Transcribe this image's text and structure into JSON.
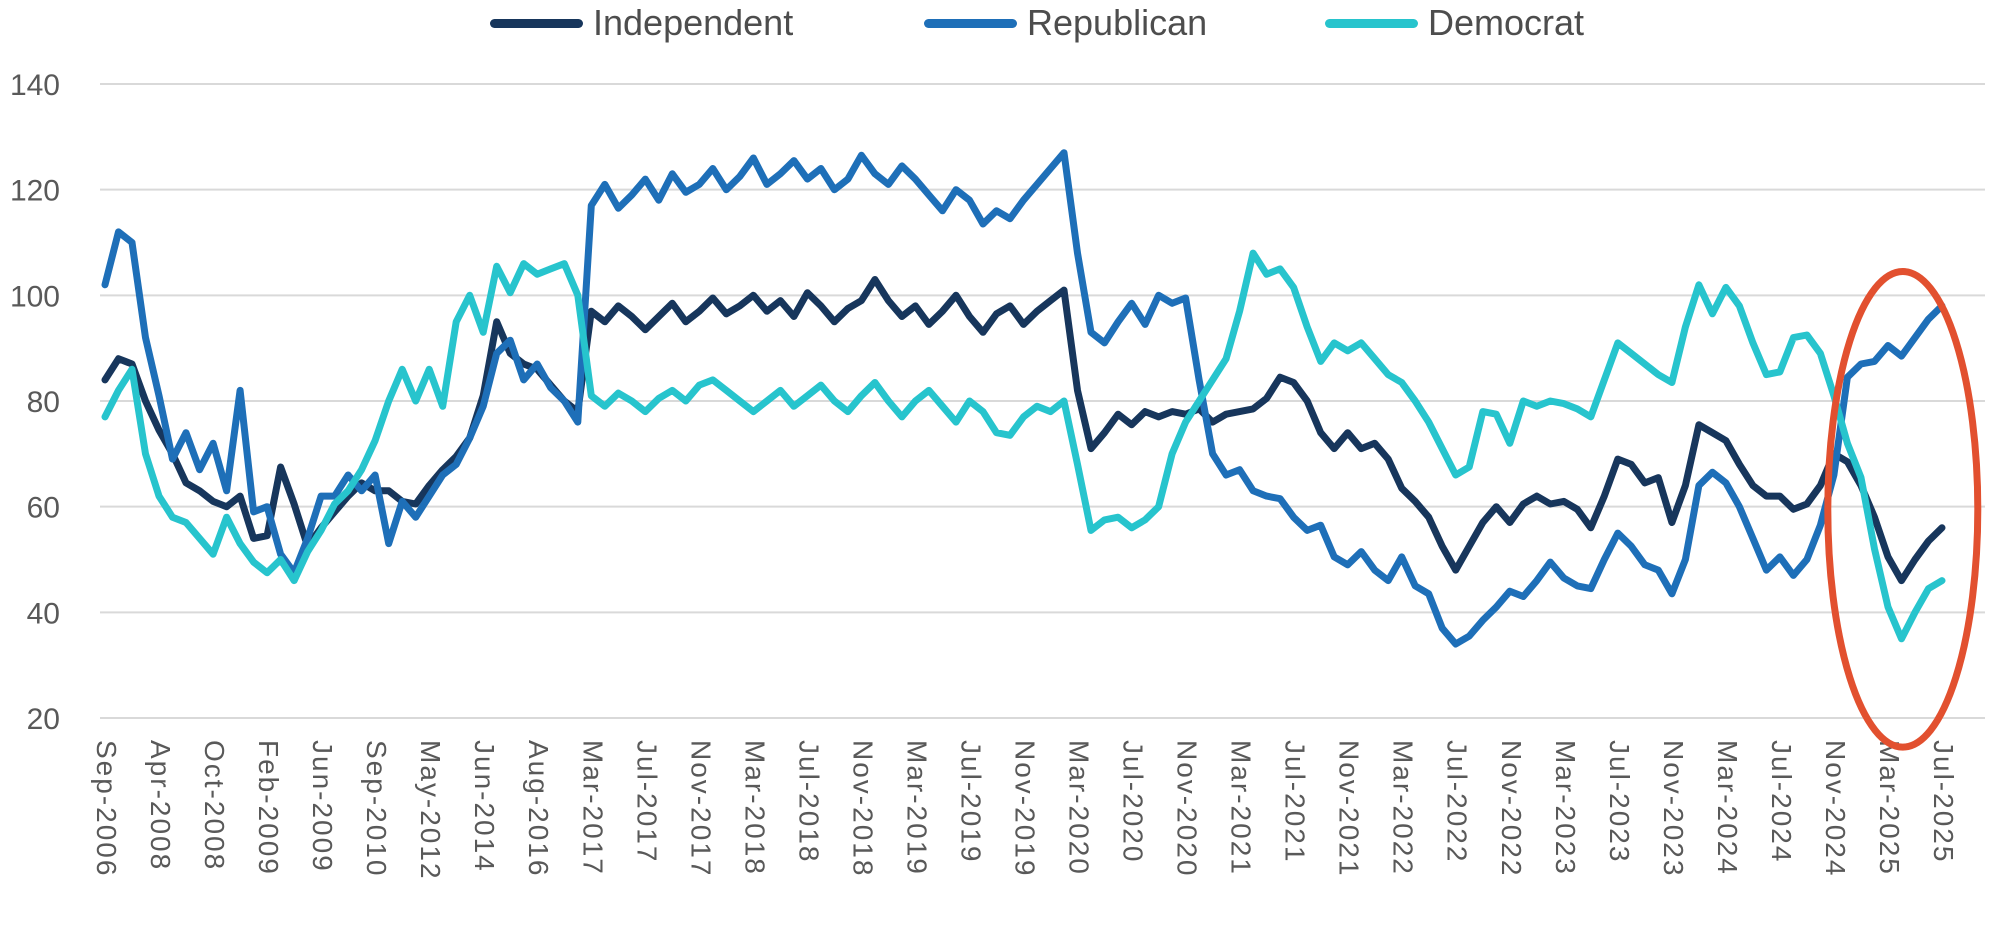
{
  "legend": {
    "items": [
      {
        "label": "Independent"
      },
      {
        "label": "Republican"
      },
      {
        "label": "Democrat"
      }
    ]
  },
  "chart_data": {
    "type": "line",
    "n_points": 137,
    "x_label_interval": 4,
    "x_labels": [
      "Sep-2006",
      "Apr-2008",
      "Oct-2008",
      "Feb-2009",
      "Jun-2009",
      "Sep-2010",
      "May-2012",
      "Jun-2014",
      "Aug-2016",
      "Mar-2017",
      "Jul-2017",
      "Nov-2017",
      "Mar-2018",
      "Jul-2018",
      "Nov-2018",
      "Mar-2019",
      "Jul-2019",
      "Nov-2019",
      "Mar-2020",
      "Jul-2020",
      "Nov-2020",
      "Mar-2021",
      "Jul-2021",
      "Nov-2021",
      "Mar-2022",
      "Jul-2022",
      "Nov-2022",
      "Mar-2023",
      "Jul-2023",
      "Nov-2023",
      "Mar-2024",
      "Jul-2024",
      "Nov-2024",
      "Mar-2025",
      "Jul-2025"
    ],
    "y_axis": {
      "min": 20,
      "max": 140,
      "tick_step": 20,
      "ticks": [
        "140",
        "120",
        "100",
        "80",
        "60",
        "40",
        "20"
      ],
      "grid": true
    },
    "legend_position": "top",
    "series": [
      {
        "name": "Independent",
        "color": "#17365c",
        "values": [
          84,
          88,
          87,
          80,
          74.5,
          70,
          64.5,
          63,
          61,
          60,
          62,
          54,
          54.5,
          67.5,
          60.5,
          52.5,
          56,
          59,
          62,
          64.5,
          63,
          63,
          61,
          60.5,
          64,
          67,
          69.5,
          73,
          81,
          95,
          89,
          87,
          86,
          83,
          80,
          78,
          97,
          95,
          98,
          96,
          93.5,
          96,
          98.5,
          95,
          97,
          99.5,
          96.5,
          98,
          100,
          97,
          99,
          96,
          100.5,
          98,
          95,
          97.5,
          99,
          103,
          99,
          96,
          98,
          94.5,
          97,
          100,
          96,
          93,
          96.5,
          98,
          94.5,
          97,
          99,
          101,
          82,
          71,
          74,
          77.5,
          75.5,
          78,
          77,
          78,
          77.5,
          78.5,
          76,
          77.5,
          78,
          78.5,
          80.5,
          84.5,
          83.5,
          80,
          74,
          71,
          74,
          71,
          72,
          69,
          63.5,
          61,
          58,
          52.5,
          48,
          52.5,
          57,
          60,
          57,
          60.5,
          62,
          60.5,
          61,
          59.5,
          56,
          62,
          69,
          68,
          64.5,
          65.5,
          57,
          64,
          75.5,
          74,
          72.5,
          68,
          64,
          62,
          62,
          59.5,
          60.5,
          64,
          70,
          68.5,
          64,
          58,
          50.5,
          46,
          50,
          53.5,
          56
        ]
      },
      {
        "name": "Republican",
        "color": "#1e6fb8",
        "values": [
          102,
          112,
          110,
          92,
          81,
          69,
          74,
          67,
          72,
          63,
          82,
          59,
          60,
          51,
          47.5,
          54,
          62,
          62,
          66,
          63,
          66,
          53,
          61,
          58,
          62,
          66,
          68,
          73,
          79,
          89,
          91.5,
          84,
          87,
          82.5,
          80,
          76,
          117,
          121,
          116.5,
          119,
          122,
          118,
          123,
          119.5,
          121,
          124,
          120,
          122.5,
          126,
          121,
          123,
          125.5,
          122,
          124,
          120,
          122,
          126.5,
          123,
          121,
          124.5,
          122,
          119,
          116,
          120,
          118,
          113.5,
          116,
          114.5,
          118,
          121,
          124,
          127,
          108,
          93,
          91,
          95,
          98.5,
          94.5,
          100,
          98.5,
          99.5,
          84,
          70,
          66,
          67,
          63,
          62,
          61.5,
          58,
          55.5,
          56.5,
          50.5,
          49,
          51.5,
          48,
          46,
          50.5,
          45,
          43.5,
          37,
          34,
          35.5,
          38.5,
          41,
          44,
          43,
          46,
          49.5,
          46.5,
          45,
          44.5,
          50,
          55,
          52.5,
          49,
          48,
          43.5,
          50,
          64,
          66.5,
          64.5,
          60,
          54,
          48,
          50.5,
          47,
          50,
          56.5,
          66,
          84.5,
          87,
          87.5,
          90.5,
          88.5,
          92,
          95.5,
          98
        ]
      },
      {
        "name": "Democrat",
        "color": "#27c4cd",
        "values": [
          77,
          82,
          86,
          70,
          62,
          58,
          57,
          54,
          51,
          58,
          53,
          49.5,
          47.5,
          50,
          46,
          51.5,
          55.5,
          60.5,
          63,
          67,
          72.5,
          80,
          86,
          80,
          86,
          79,
          95,
          100,
          93,
          105.5,
          100.5,
          106,
          104,
          105,
          106,
          100,
          81,
          79,
          81.5,
          80,
          78,
          80.5,
          82,
          80,
          83,
          84,
          82,
          80,
          78,
          80,
          82,
          79,
          81,
          83,
          80,
          78,
          81,
          83.5,
          80,
          77,
          80,
          82,
          79,
          76,
          80,
          78,
          74,
          73.5,
          77,
          79,
          78,
          80,
          68,
          55.5,
          57.5,
          58,
          56,
          57.5,
          60,
          70,
          76,
          80,
          84,
          88,
          97,
          108,
          104,
          105,
          101.5,
          94,
          87.5,
          91,
          89.5,
          91,
          88,
          85,
          83.5,
          80,
          76,
          71,
          66,
          67.5,
          78,
          77.5,
          72,
          80,
          79,
          80,
          79.5,
          78.5,
          77,
          84,
          91,
          89,
          87,
          85,
          83.5,
          94,
          102,
          96.5,
          101.5,
          98,
          91,
          85,
          85.5,
          92,
          92.5,
          89,
          81,
          72,
          65.5,
          52,
          41,
          35,
          40,
          44.5,
          46
        ]
      }
    ],
    "annotation_circle": {
      "color": "#e2502f",
      "center_category": 133.1,
      "center_value": 59.5,
      "radius_categories": 5.55,
      "radius_values": 45
    }
  },
  "colors": {
    "background": "#ffffff",
    "grid": "#d9d9d9",
    "axis_text": "#595959",
    "legend_text": "#4d4d4d"
  }
}
